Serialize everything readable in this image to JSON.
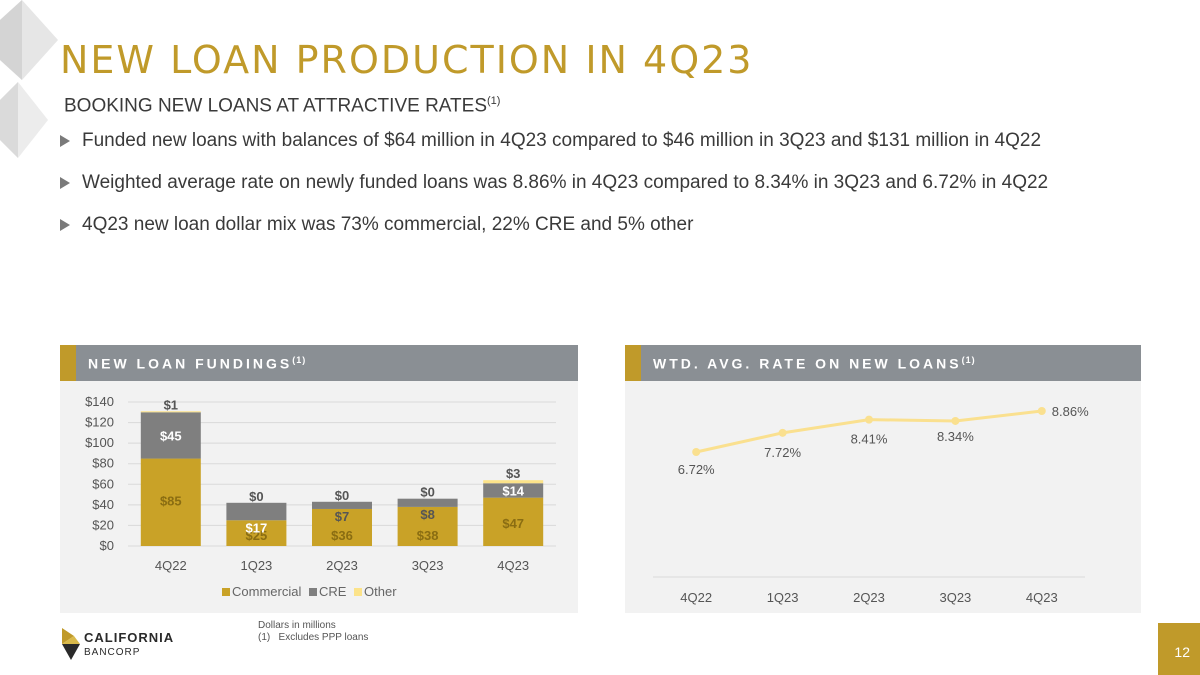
{
  "slide": {
    "title": "NEW LOAN PRODUCTION IN 4Q23",
    "subtitle": "BOOKING NEW LOANS AT ATTRACTIVE RATES",
    "subtitle_sup": "(1)",
    "bullets": [
      "Funded new loans with balances of $64 million in 4Q23 compared to $46 million in 3Q23 and $131 million in 4Q22",
      "Weighted average rate on newly funded loans was 8.86% in 4Q23 compared to 8.34% in 3Q23 and 6.72% in 4Q22",
      "4Q23 new loan dollar mix was 73% commercial, 22% CRE and 5% other"
    ],
    "footnote_line1": "Dollars in millions",
    "footnote_line2": "(1)   Excludes PPP loans",
    "logo_line1": "CALIFORNIA",
    "logo_line2": "BANCORP",
    "page_number": "12"
  },
  "panels": {
    "left_title": "NEW LOAN FUNDINGS",
    "left_sup": "(1)",
    "right_title": "WTD. AVG. RATE ON NEW LOANS",
    "right_sup": "(1)"
  },
  "colors": {
    "gold": "#C09A2A",
    "commercial": "#C9A227",
    "cre": "#7f7f7f",
    "other": "#FCE38A",
    "line": "#FAE08F"
  },
  "chart_data": [
    {
      "type": "bar",
      "stacked": true,
      "title": "NEW LOAN FUNDINGS(1)",
      "categories": [
        "4Q22",
        "1Q23",
        "2Q23",
        "3Q23",
        "4Q23"
      ],
      "series": [
        {
          "name": "Commercial",
          "values": [
            85,
            25,
            36,
            38,
            47
          ],
          "labels": [
            "$85",
            "$25",
            "$36",
            "$38",
            "$47"
          ]
        },
        {
          "name": "CRE",
          "values": [
            45,
            17,
            7,
            8,
            14
          ],
          "labels": [
            "$45",
            "$17",
            "$7",
            "$8",
            "$14"
          ]
        },
        {
          "name": "Other",
          "values": [
            1,
            0,
            0,
            0,
            3
          ],
          "labels": [
            "$1",
            "$0",
            "$0",
            "$0",
            "$3"
          ]
        }
      ],
      "yticks": [
        "$0",
        "$20",
        "$40",
        "$60",
        "$80",
        "$100",
        "$120",
        "$140"
      ],
      "ylim": [
        0,
        140
      ],
      "legend": "bottom"
    },
    {
      "type": "line",
      "title": "WTD. AVG. RATE ON NEW LOANS(1)",
      "categories": [
        "4Q22",
        "1Q23",
        "2Q23",
        "3Q23",
        "4Q23"
      ],
      "values": [
        6.72,
        7.72,
        8.41,
        8.34,
        8.86
      ],
      "labels": [
        "6.72%",
        "7.72%",
        "8.41%",
        "8.34%",
        "8.86%"
      ],
      "ylim": [
        0,
        9
      ]
    }
  ]
}
